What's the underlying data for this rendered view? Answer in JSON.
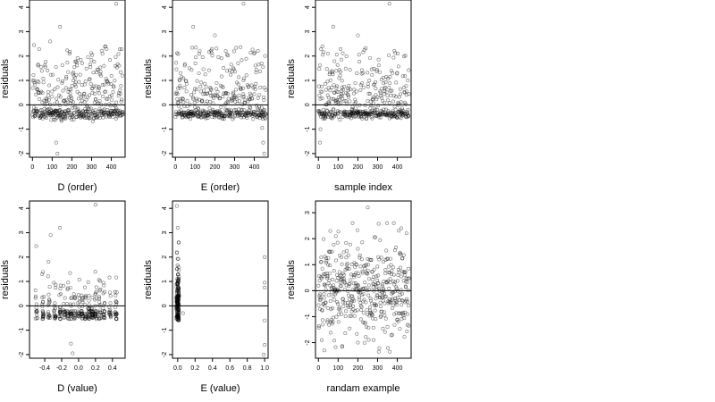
{
  "ylabel": "residuals",
  "colors": {
    "axis": "#000000",
    "point": "#000000",
    "zero_line": "#000000",
    "background": "#ffffff"
  },
  "chart_data": [
    {
      "type": "scatter",
      "title": "",
      "xlabel": "D (order)",
      "ylabel": "residuals",
      "xlim": [
        -15,
        470
      ],
      "ylim": [
        -2.15,
        4.3
      ],
      "xticks": [
        0,
        100,
        200,
        300,
        400
      ],
      "xtick_labels": [
        "0",
        "100",
        "200",
        "300",
        "400"
      ],
      "yticks": [
        -2,
        -1,
        0,
        1,
        2,
        3,
        4
      ],
      "ytick_labels": [
        "-2",
        "-1",
        "0",
        "1",
        "2",
        "3",
        "4"
      ],
      "hline": 0,
      "gen": "order",
      "seed": 11,
      "band": [
        -0.55,
        -0.2
      ],
      "noise": 0.35,
      "outliers": [
        [
          8,
          2.45
        ],
        [
          140,
          3.2
        ],
        [
          425,
          4.15
        ],
        [
          370,
          2.4
        ],
        [
          120,
          -1.55
        ],
        [
          127,
          -2.0
        ],
        [
          90,
          2.6
        ]
      ],
      "points": []
    },
    {
      "type": "scatter",
      "title": "",
      "xlabel": "E (order)",
      "ylabel": "residuals",
      "xlim": [
        -15,
        470
      ],
      "ylim": [
        -2.15,
        4.3
      ],
      "xticks": [
        0,
        100,
        200,
        300,
        400
      ],
      "xtick_labels": [
        "0",
        "100",
        "200",
        "300",
        "400"
      ],
      "yticks": [
        -2,
        -1,
        0,
        1,
        2,
        3,
        4
      ],
      "ytick_labels": [
        "-2",
        "-1",
        "0",
        "1",
        "2",
        "3",
        "4"
      ],
      "hline": 0,
      "gen": "order",
      "seed": 23,
      "band": [
        -0.5,
        -0.25
      ],
      "noise": 0.35,
      "outliers": [
        [
          345,
          4.15
        ],
        [
          90,
          3.2
        ],
        [
          200,
          2.85
        ],
        [
          445,
          -1.55
        ],
        [
          450,
          -2.0
        ],
        [
          440,
          -0.95
        ]
      ],
      "points": []
    },
    {
      "type": "scatter",
      "title": "",
      "xlabel": "sample index",
      "ylabel": "residuals",
      "xlim": [
        -15,
        470
      ],
      "ylim": [
        -2.15,
        4.3
      ],
      "xticks": [
        0,
        100,
        200,
        300,
        400
      ],
      "xtick_labels": [
        "0",
        "100",
        "200",
        "300",
        "400"
      ],
      "yticks": [
        -2,
        -1,
        0,
        1,
        2,
        3,
        4
      ],
      "ytick_labels": [
        "-2",
        "-1",
        "0",
        "1",
        "2",
        "3",
        "4"
      ],
      "hline": 0,
      "gen": "order",
      "seed": 37,
      "band": [
        -0.5,
        -0.25
      ],
      "noise": 0.35,
      "outliers": [
        [
          360,
          4.15
        ],
        [
          75,
          3.2
        ],
        [
          200,
          2.85
        ],
        [
          10,
          -1.0
        ],
        [
          8,
          -1.55
        ],
        [
          20,
          2.4
        ]
      ],
      "points": []
    },
    {
      "type": "scatter",
      "title": "",
      "xlabel": "D (value)",
      "ylabel": "residuals",
      "xlim": [
        -0.58,
        0.55
      ],
      "ylim": [
        -2.15,
        4.3
      ],
      "xticks": [
        -0.4,
        -0.2,
        0.0,
        0.2,
        0.4
      ],
      "xtick_labels": [
        "-0.4",
        "-0.2",
        "0.0",
        "0.2",
        "0.4"
      ],
      "yticks": [
        -2,
        -1,
        0,
        1,
        2,
        3,
        4
      ],
      "ytick_labels": [
        "-2",
        "-1",
        "0",
        "1",
        "2",
        "3",
        "4"
      ],
      "hline": 0,
      "gen": "dvalue",
      "seed": 53,
      "columns": [
        -0.5,
        -0.42,
        -0.35,
        -0.28,
        -0.22,
        -0.17,
        -0.13,
        -0.09,
        -0.05,
        0.0,
        0.04,
        0.08,
        0.12,
        0.16,
        0.2,
        0.25,
        0.3,
        0.37,
        0.44
      ],
      "outliers": [
        [
          0.2,
          4.15
        ],
        [
          -0.22,
          3.2
        ],
        [
          -0.33,
          2.9
        ],
        [
          -0.5,
          2.45
        ],
        [
          -0.09,
          -1.55
        ],
        [
          -0.07,
          -1.95
        ]
      ],
      "points": []
    },
    {
      "type": "scatter",
      "title": "",
      "xlabel": "E (value)",
      "ylabel": "residuals",
      "xlim": [
        -0.06,
        1.04
      ],
      "ylim": [
        -2.15,
        4.3
      ],
      "xticks": [
        0.0,
        0.2,
        0.4,
        0.6,
        0.8,
        1.0
      ],
      "xtick_labels": [
        "0.0",
        "0.2",
        "0.4",
        "0.6",
        "0.8",
        "1.0"
      ],
      "yticks": [
        -2,
        -1,
        0,
        1,
        2,
        3,
        4
      ],
      "ytick_labels": [
        "-2",
        "-1",
        "0",
        "1",
        "2",
        "3",
        "4"
      ],
      "hline": 0,
      "gen": "evalue",
      "seed": 71,
      "outliers": [
        [
          -0.01,
          4.1
        ],
        [
          0.0,
          3.2
        ],
        [
          0.01,
          2.6
        ],
        [
          0.06,
          -0.3
        ],
        [
          1.0,
          2.0
        ],
        [
          1.0,
          0.95
        ],
        [
          1.0,
          0.75
        ],
        [
          1.0,
          -0.6
        ],
        [
          1.0,
          -1.6
        ],
        [
          0.99,
          -2.0
        ]
      ],
      "points": []
    },
    {
      "type": "scatter",
      "title": "",
      "xlabel": "randam example",
      "ylabel": "residuals",
      "xlim": [
        -15,
        470
      ],
      "ylim": [
        -2.6,
        3.45
      ],
      "xticks": [
        0,
        100,
        200,
        300,
        400
      ],
      "xtick_labels": [
        "0",
        "100",
        "200",
        "300",
        "400"
      ],
      "yticks": [
        -2,
        -1,
        0,
        1,
        2,
        3
      ],
      "ytick_labels": [
        "-2",
        "-1",
        "0",
        "1",
        "2",
        "3"
      ],
      "hline": 0,
      "gen": "random",
      "seed": 97,
      "outliers": [
        [
          250,
          3.2
        ],
        [
          60,
          2.3
        ],
        [
          420,
          2.4
        ],
        [
          30,
          -2.3
        ],
        [
          200,
          -2.0
        ],
        [
          280,
          -1.9
        ]
      ],
      "points": []
    }
  ]
}
